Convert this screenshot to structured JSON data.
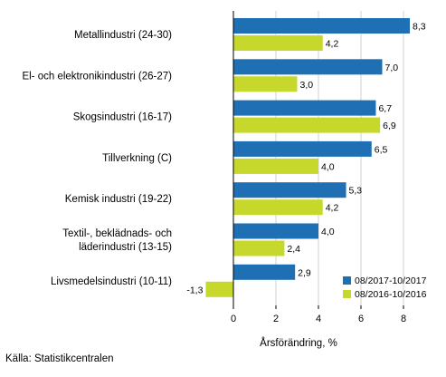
{
  "chart_data": {
    "type": "bar",
    "orientation": "horizontal",
    "categories": [
      [
        "Metallindustri (24-30)"
      ],
      [
        "El- och elektronikindustri (26-27)"
      ],
      [
        "Skogsindustri (16-17)"
      ],
      [
        "Tillverkning (C)"
      ],
      [
        "Kemisk industri (19-22)"
      ],
      [
        "Textil-, beklädnads- och",
        "läderindustri (13-15)"
      ],
      [
        "Livsmedelsindustri (10-11)"
      ]
    ],
    "series": [
      {
        "name": "08/2017-10/2017",
        "color": "#1f6fb4",
        "values": [
          8.3,
          7.0,
          6.7,
          6.5,
          5.3,
          4.0,
          2.9
        ],
        "labels": [
          "8,3",
          "7,0",
          "6,7",
          "6,5",
          "5,3",
          "4,0",
          "2,9"
        ]
      },
      {
        "name": "08/2016-10/2016",
        "color": "#c6d82b",
        "values": [
          4.2,
          3.0,
          6.9,
          4.0,
          4.2,
          2.4,
          -1.3
        ],
        "labels": [
          "4,2",
          "3,0",
          "6,9",
          "4,0",
          "4,2",
          "2,4",
          "-1,3"
        ]
      }
    ],
    "xlim": [
      -2.3,
      9.2
    ],
    "xticks": [
      0,
      2,
      4,
      6,
      8
    ],
    "xtick_labels": [
      "0",
      "2",
      "4",
      "6",
      "8"
    ],
    "xlabel": "Årsförändring, %",
    "ylabel": "",
    "title": "",
    "grid": "vertical",
    "legend_position": "bottom-right"
  },
  "source": "Källa: Statistikcentralen"
}
